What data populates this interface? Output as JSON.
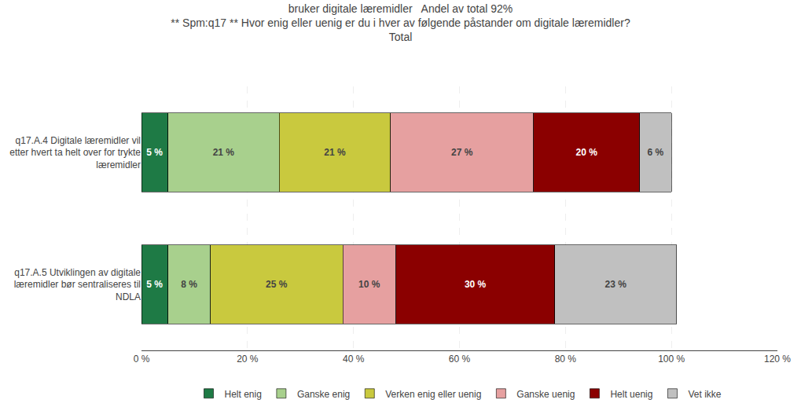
{
  "chart_data": {
    "type": "bar",
    "orientation": "horizontal",
    "stacked": true,
    "data_labels": true,
    "grid": true,
    "legend": "bottom",
    "title": "bruker digitale læremidler   Andel av total 92%\n** Spm:q17 ** Hvor enig eller uenig er du i hver av følgende påstander om digitale læremidler?\nTotal",
    "categories": [
      "q17.A.4 Digitale læremidler vil\netter hvert ta helt over for trykte\nlæremidler",
      "q17.A.5 Utviklingen av digitale\nlæremidler bør sentraliseres til\nNDLA"
    ],
    "series": [
      {
        "name": "Helt enig",
        "color": "#1e7a45",
        "values": [
          5,
          5
        ],
        "value_labels": [
          "5 %",
          "5 %"
        ]
      },
      {
        "name": "Ganske enig",
        "color": "#a8d08d",
        "values": [
          21,
          8
        ],
        "value_labels": [
          "21 %",
          "8 %"
        ]
      },
      {
        "name": "Verken enig eller uenig",
        "color": "#c9c93e",
        "values": [
          21,
          25
        ],
        "value_labels": [
          "21 %",
          "25 %"
        ]
      },
      {
        "name": "Ganske uenig",
        "color": "#e6a0a0",
        "values": [
          27,
          10
        ],
        "value_labels": [
          "27 %",
          "10 %"
        ]
      },
      {
        "name": "Helt uenig",
        "color": "#8b0000",
        "values": [
          20,
          30
        ],
        "value_labels": [
          "20 %",
          "30 %"
        ]
      },
      {
        "name": "Vet ikke",
        "color": "#c0c0c0",
        "values": [
          6,
          23
        ],
        "value_labels": [
          "6 %",
          "23 %"
        ]
      }
    ],
    "xlim": [
      0,
      120
    ],
    "xticks": [
      {
        "value": 0,
        "label": "0 %"
      },
      {
        "value": 20,
        "label": "20 %"
      },
      {
        "value": 40,
        "label": "40 %"
      },
      {
        "value": 60,
        "label": "60 %"
      },
      {
        "value": 80,
        "label": "80 %"
      },
      {
        "value": 100,
        "label": "100 %"
      },
      {
        "value": 120,
        "label": "120 %"
      }
    ]
  }
}
